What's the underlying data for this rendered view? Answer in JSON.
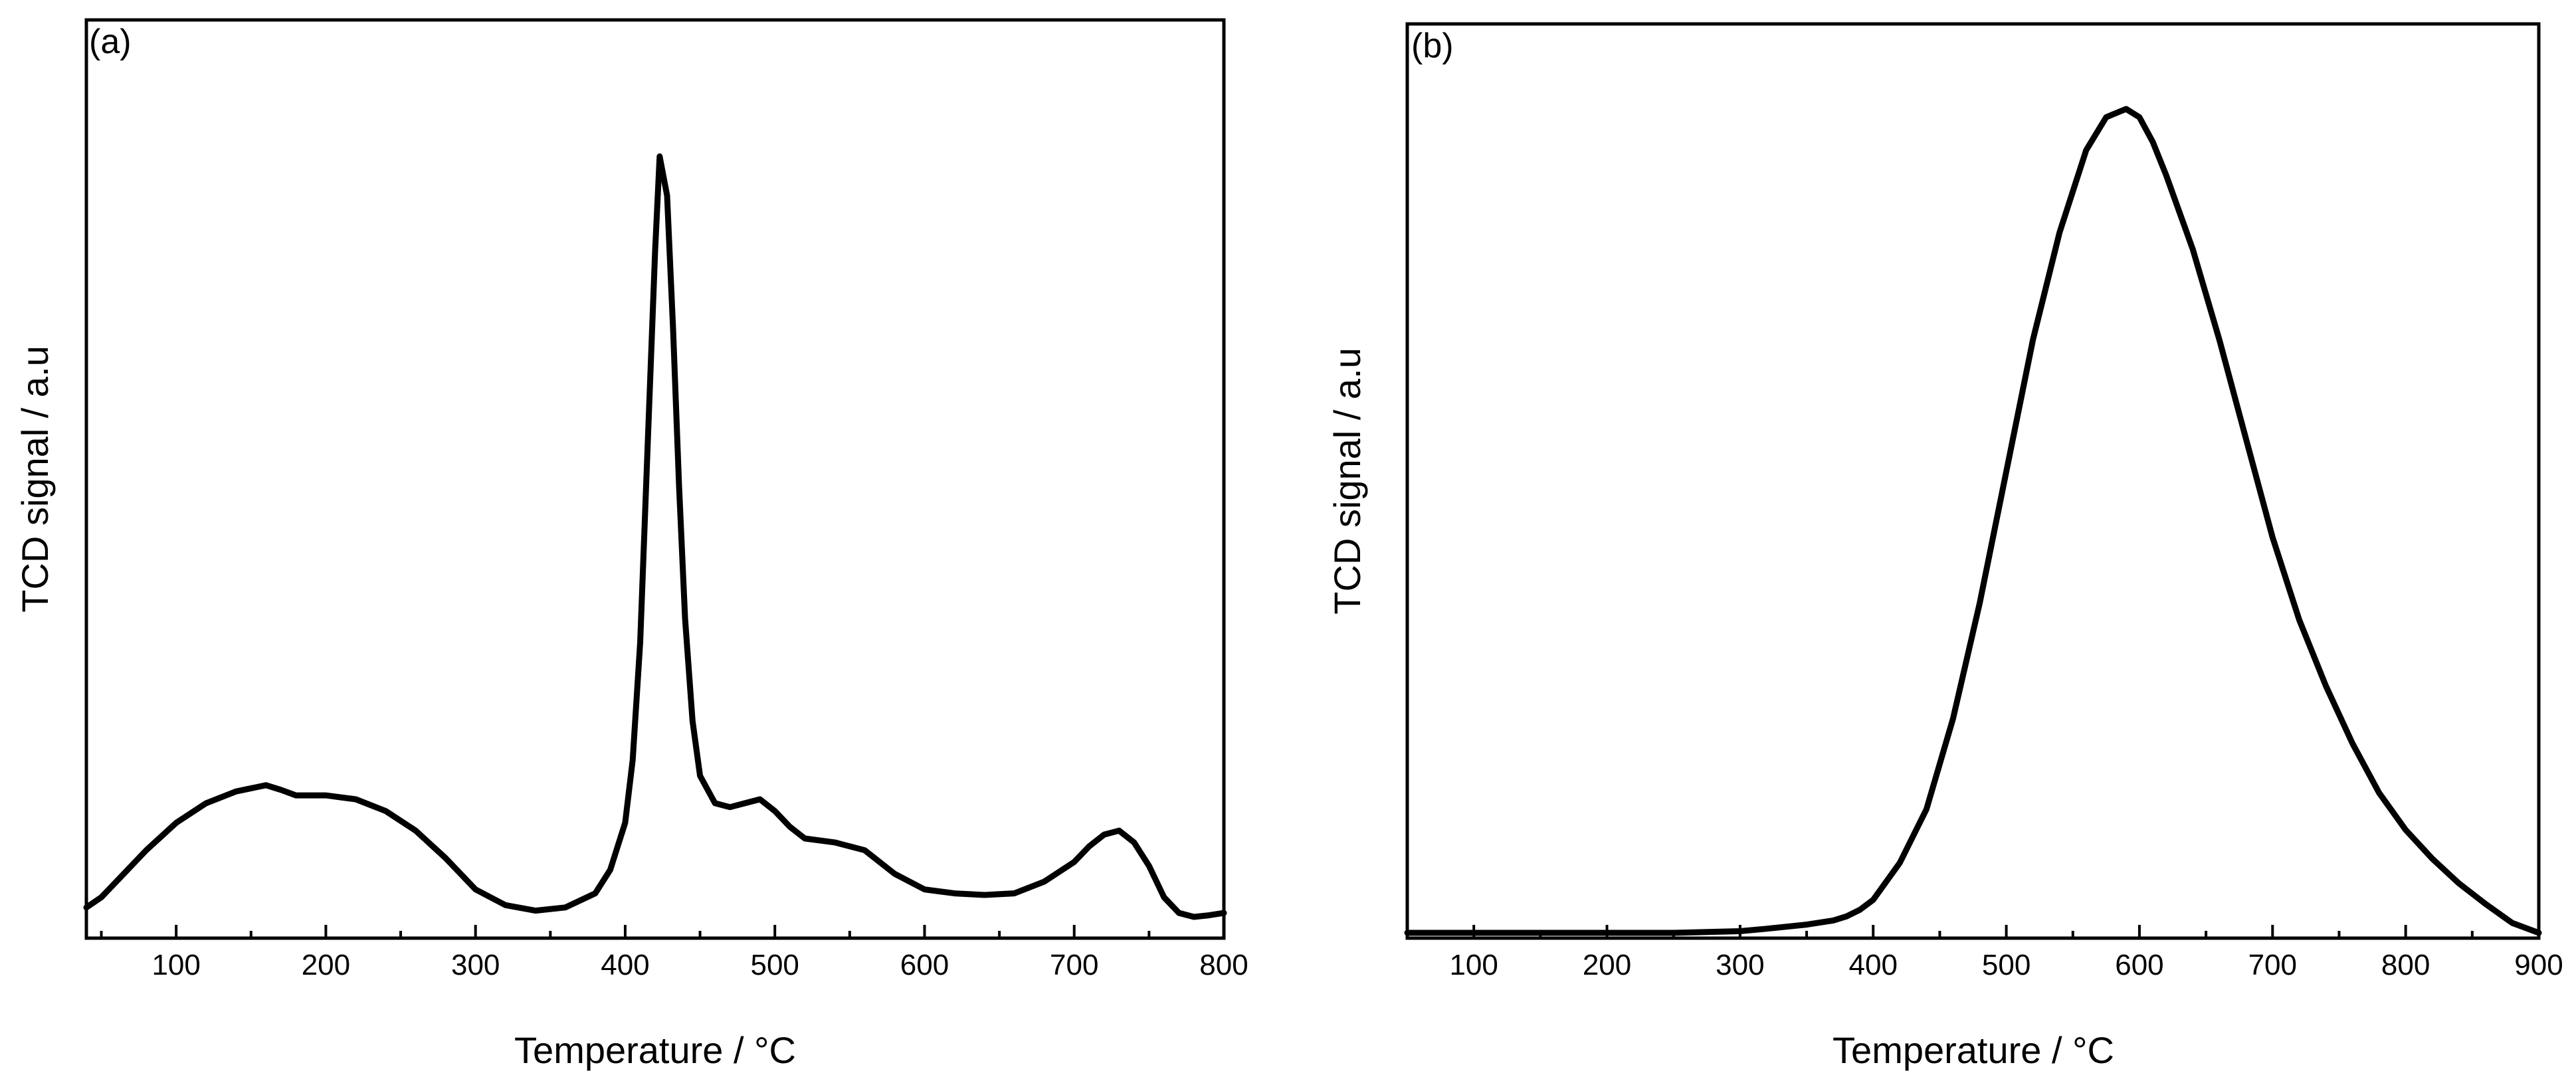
{
  "chart_data": [
    {
      "type": "line",
      "panel_label": "(a)",
      "title": "",
      "xlabel": "Temperature / °C",
      "ylabel": "TCD signal / a.u",
      "xlim": [
        40,
        800
      ],
      "ylim": [
        0,
        1.0
      ],
      "xticks": [
        100,
        200,
        300,
        400,
        500,
        600,
        700,
        800
      ],
      "yticks_shown": false,
      "grid": false,
      "legend": "none",
      "series": [
        {
          "name": "TCD signal",
          "x": [
            40,
            50,
            60,
            80,
            100,
            120,
            140,
            160,
            170,
            180,
            200,
            220,
            240,
            260,
            280,
            300,
            320,
            340,
            360,
            380,
            390,
            400,
            405,
            410,
            415,
            420,
            423,
            428,
            432,
            436,
            440,
            445,
            450,
            460,
            470,
            480,
            490,
            500,
            510,
            520,
            540,
            560,
            580,
            600,
            620,
            640,
            660,
            680,
            700,
            710,
            720,
            730,
            740,
            750,
            760,
            770,
            780,
            790,
            800
          ],
          "y": [
            0.012,
            0.025,
            0.045,
            0.085,
            0.12,
            0.145,
            0.16,
            0.168,
            0.162,
            0.155,
            0.155,
            0.15,
            0.135,
            0.11,
            0.075,
            0.035,
            0.015,
            0.008,
            0.012,
            0.03,
            0.06,
            0.12,
            0.2,
            0.35,
            0.6,
            0.85,
            0.97,
            0.92,
            0.75,
            0.55,
            0.38,
            0.25,
            0.18,
            0.145,
            0.14,
            0.145,
            0.15,
            0.135,
            0.115,
            0.1,
            0.095,
            0.085,
            0.055,
            0.035,
            0.03,
            0.028,
            0.03,
            0.045,
            0.07,
            0.09,
            0.105,
            0.11,
            0.095,
            0.065,
            0.025,
            0.005,
            0.0,
            0.002,
            0.005
          ]
        }
      ]
    },
    {
      "type": "line",
      "panel_label": "(b)",
      "title": "",
      "xlabel": "Temperature / °C",
      "ylabel": "TCD signal / a.u",
      "xlim": [
        50,
        900
      ],
      "ylim": [
        0,
        1.0
      ],
      "xticks": [
        100,
        200,
        300,
        400,
        500,
        600,
        700,
        800,
        900
      ],
      "yticks_shown": false,
      "grid": false,
      "legend": "none",
      "series": [
        {
          "name": "TCD signal",
          "x": [
            50,
            100,
            150,
            200,
            250,
            300,
            320,
            350,
            370,
            380,
            390,
            400,
            420,
            440,
            460,
            480,
            500,
            520,
            540,
            560,
            575,
            590,
            600,
            610,
            620,
            640,
            660,
            680,
            700,
            720,
            740,
            760,
            780,
            800,
            820,
            840,
            860,
            880,
            900
          ],
          "y": [
            0.0,
            0.0,
            0.0,
            0.0,
            0.0,
            0.002,
            0.005,
            0.01,
            0.015,
            0.02,
            0.028,
            0.04,
            0.085,
            0.15,
            0.26,
            0.4,
            0.56,
            0.72,
            0.85,
            0.95,
            0.99,
            1.0,
            0.99,
            0.96,
            0.92,
            0.83,
            0.72,
            0.6,
            0.48,
            0.38,
            0.3,
            0.23,
            0.17,
            0.125,
            0.09,
            0.06,
            0.035,
            0.012,
            0.0
          ]
        }
      ]
    }
  ]
}
